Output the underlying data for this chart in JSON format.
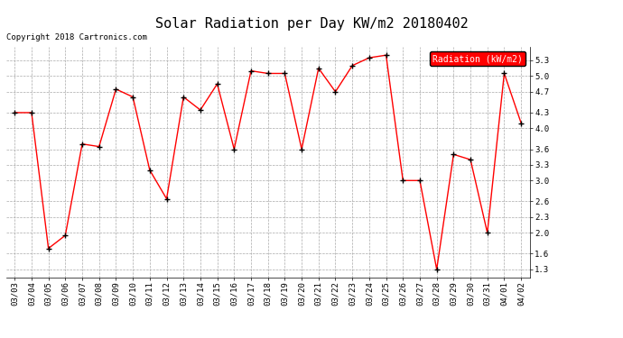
{
  "title": "Solar Radiation per Day KW/m2 20180402",
  "copyright": "Copyright 2018 Cartronics.com",
  "legend_label": "Radiation (kW/m2)",
  "dates": [
    "03/03",
    "03/04",
    "03/05",
    "03/06",
    "03/07",
    "03/08",
    "03/09",
    "03/10",
    "03/11",
    "03/12",
    "03/13",
    "03/14",
    "03/15",
    "03/16",
    "03/17",
    "03/18",
    "03/19",
    "03/20",
    "03/21",
    "03/22",
    "03/23",
    "03/24",
    "03/25",
    "03/26",
    "03/27",
    "03/28",
    "03/29",
    "03/30",
    "03/31",
    "04/01",
    "04/02"
  ],
  "values": [
    4.3,
    4.3,
    1.7,
    1.95,
    3.7,
    3.65,
    4.75,
    4.6,
    3.2,
    2.65,
    4.6,
    4.35,
    4.85,
    3.6,
    5.1,
    5.05,
    5.05,
    3.6,
    5.15,
    4.7,
    5.2,
    5.35,
    5.4,
    3.0,
    3.0,
    1.3,
    3.5,
    3.4,
    2.0,
    5.05,
    4.1
  ],
  "line_color": "#ff0000",
  "marker_color": "#000000",
  "bg_color": "#ffffff",
  "grid_color": "#aaaaaa",
  "ylim_min": 1.15,
  "ylim_max": 5.55,
  "yticks": [
    1.3,
    1.6,
    2.0,
    2.3,
    2.6,
    3.0,
    3.3,
    3.6,
    4.0,
    4.3,
    4.7,
    5.0,
    5.3
  ],
  "legend_bg": "#ff0000",
  "legend_text_color": "#ffffff",
  "title_fontsize": 11,
  "copyright_fontsize": 6.5,
  "tick_fontsize": 6.5,
  "legend_fontsize": 7
}
